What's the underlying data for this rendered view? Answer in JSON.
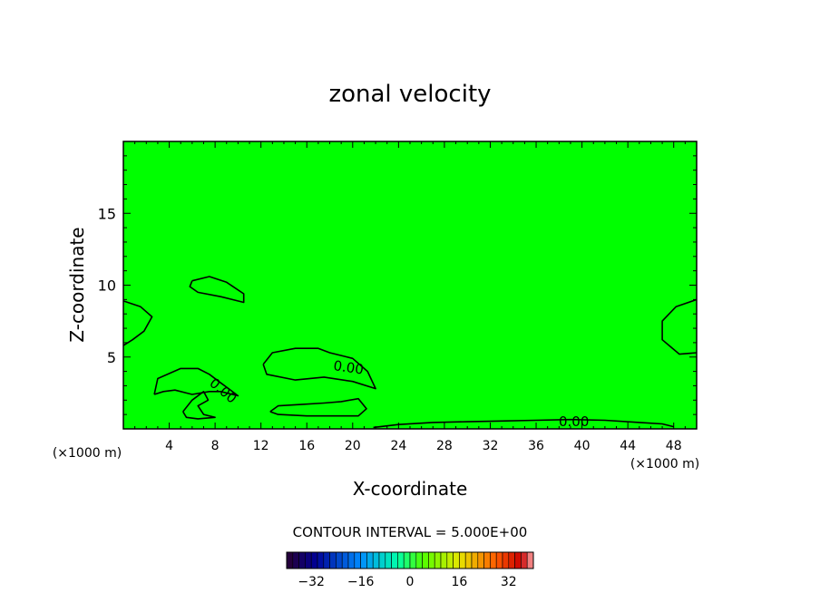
{
  "chart_data": {
    "type": "heatmap",
    "title": "zonal velocity",
    "xlabel": "X-coordinate",
    "ylabel": "Z-coordinate",
    "x_unit": "(×1000 m)",
    "xlim": [
      0,
      50
    ],
    "ylim": [
      0,
      20
    ],
    "x_ticks": [
      4,
      8,
      12,
      16,
      20,
      24,
      28,
      32,
      36,
      40,
      44,
      48
    ],
    "y_ticks": [
      5,
      10,
      15
    ],
    "contour_interval_text": "CONTOUR INTERVAL = 5.000E+00",
    "contour_labels": [
      "0.00",
      "0.00",
      "0.00"
    ],
    "colorbar": {
      "range": [
        -40,
        40
      ],
      "ticks": [
        -32,
        -16,
        0,
        16,
        32
      ]
    },
    "field_color": "#00ff00",
    "contours": [
      {
        "level": 0,
        "points": [
          [
            0,
            8.9
          ],
          [
            1.5,
            8.5
          ],
          [
            2.5,
            7.8
          ],
          [
            1.8,
            6.8
          ],
          [
            0.8,
            6.2
          ],
          [
            0,
            5.8
          ]
        ]
      },
      {
        "level": 0,
        "points": [
          [
            6,
            10.3
          ],
          [
            7.5,
            10.6
          ],
          [
            9,
            10.2
          ],
          [
            10.5,
            9.4
          ],
          [
            10.5,
            8.8
          ],
          [
            8.5,
            9.2
          ],
          [
            6.5,
            9.5
          ],
          [
            5.8,
            9.9
          ],
          [
            6,
            10.3
          ]
        ]
      },
      {
        "level": 0,
        "points": [
          [
            2.7,
            2.4
          ],
          [
            3,
            3.5
          ],
          [
            5,
            4.2
          ],
          [
            6.5,
            4.2
          ],
          [
            7.5,
            3.8
          ],
          [
            8.5,
            3.2
          ],
          [
            9,
            2.9
          ],
          [
            10,
            2.3
          ],
          [
            8.5,
            2.6
          ],
          [
            7.5,
            2.6
          ],
          [
            6,
            2.4
          ],
          [
            4.5,
            2.7
          ],
          [
            3.5,
            2.6
          ],
          [
            2.7,
            2.4
          ]
        ]
      },
      {
        "level": 0,
        "points": [
          [
            12.2,
            4.5
          ],
          [
            13,
            5.3
          ],
          [
            15,
            5.6
          ],
          [
            17,
            5.6
          ],
          [
            18,
            5.3
          ],
          [
            20,
            4.9
          ],
          [
            21.3,
            4
          ],
          [
            22,
            2.8
          ],
          [
            20,
            3.3
          ],
          [
            17.5,
            3.6
          ],
          [
            15,
            3.4
          ],
          [
            12.5,
            3.8
          ],
          [
            12.2,
            4.5
          ]
        ]
      },
      {
        "level": 0,
        "points": [
          [
            12.8,
            1.2
          ],
          [
            13.5,
            1.6
          ],
          [
            15.5,
            1.7
          ],
          [
            17.5,
            1.8
          ],
          [
            19,
            1.9
          ],
          [
            20.5,
            2.1
          ],
          [
            21.2,
            1.4
          ],
          [
            20.5,
            0.9
          ],
          [
            18.5,
            0.9
          ],
          [
            16,
            0.9
          ],
          [
            13.5,
            1
          ],
          [
            12.8,
            1.2
          ]
        ]
      },
      {
        "level": 0,
        "points": [
          [
            5.2,
            1.2
          ],
          [
            6,
            2
          ],
          [
            7,
            2.6
          ],
          [
            7.4,
            2
          ],
          [
            6.5,
            1.6
          ],
          [
            7,
            1
          ],
          [
            8,
            0.8
          ],
          [
            6.5,
            0.7
          ],
          [
            5.5,
            0.8
          ],
          [
            5.2,
            1.2
          ]
        ]
      },
      {
        "level": 0,
        "points": [
          [
            21.8,
            0.1
          ],
          [
            24,
            0.3
          ],
          [
            27,
            0.45
          ],
          [
            30,
            0.5
          ],
          [
            33,
            0.55
          ],
          [
            36,
            0.6
          ],
          [
            39,
            0.65
          ],
          [
            42,
            0.6
          ],
          [
            45,
            0.45
          ],
          [
            47,
            0.35
          ],
          [
            48,
            0.15
          ]
        ]
      },
      {
        "level": 0,
        "points": [
          [
            50,
            9
          ],
          [
            48.2,
            8.5
          ],
          [
            47,
            7.5
          ],
          [
            47,
            6.2
          ],
          [
            48.5,
            5.2
          ],
          [
            50,
            5.3
          ]
        ]
      }
    ]
  }
}
